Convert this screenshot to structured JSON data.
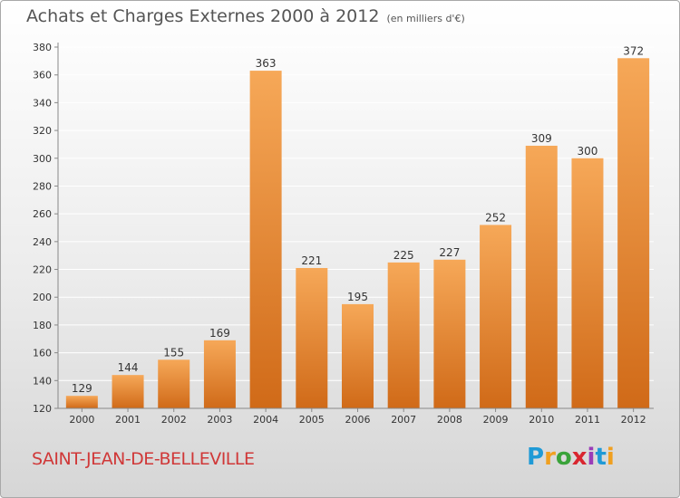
{
  "header": {
    "title": "Achats et Charges Externes 2000 à 2012",
    "subtitle": "(en milliers d'€)"
  },
  "footer": {
    "place": "SAINT-JEAN-DE-BELLEVILLE",
    "logo_letters": [
      "P",
      "r",
      "o",
      "x",
      "i",
      "t",
      "i"
    ],
    "logo_colors": [
      "#1f9ad6",
      "#f0a020",
      "#3aa33a",
      "#d9262f",
      "#9a3cb8",
      "#1f9ad6",
      "#f0a020"
    ]
  },
  "colors": {
    "bar_light": "#f6a858",
    "bar_dark": "#d06a18",
    "grid": "#ffffff",
    "axis_text": "#333333"
  },
  "chart_data": {
    "type": "bar",
    "categories": [
      "2000",
      "2001",
      "2002",
      "2003",
      "2004",
      "2005",
      "2006",
      "2007",
      "2008",
      "2009",
      "2010",
      "2011",
      "2012"
    ],
    "values": [
      129,
      144,
      155,
      169,
      363,
      221,
      195,
      225,
      227,
      252,
      309,
      300,
      372
    ],
    "ylim": [
      120,
      380
    ],
    "yticks": [
      120,
      140,
      160,
      180,
      200,
      220,
      240,
      260,
      280,
      300,
      320,
      340,
      360,
      380
    ],
    "grid": true,
    "title": "Achats et Charges Externes 2000 à 2012",
    "xlabel": "",
    "ylabel": ""
  }
}
